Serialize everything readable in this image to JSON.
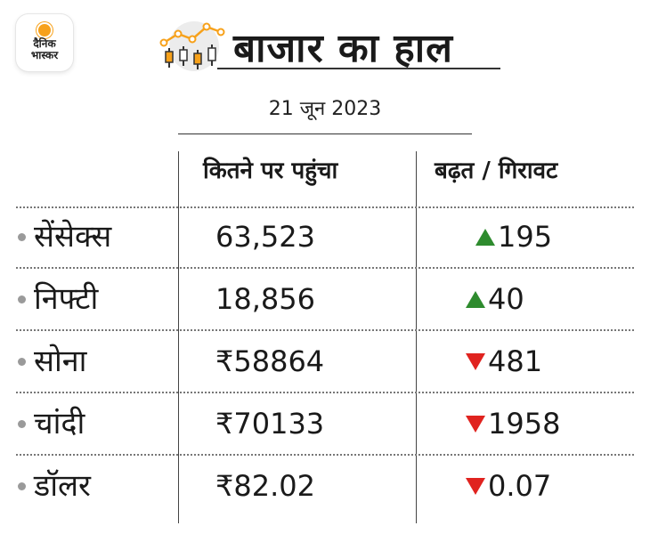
{
  "brand": {
    "line1": "दैनिक",
    "line2": "भास्कर"
  },
  "header": {
    "title": "बाजार का हाल",
    "date": "21 जून 2023"
  },
  "table": {
    "columns": [
      "कितने पर पहुंचा",
      "बढ़त / गिरावट"
    ],
    "rows": [
      {
        "name": "सेंसेक्स",
        "value": "63,523",
        "change": "195",
        "direction": "up"
      },
      {
        "name": "निफ्टी",
        "value": "18,856",
        "change": "40",
        "direction": "up"
      },
      {
        "name": "सोना",
        "value": "₹58864",
        "change": "481",
        "direction": "down"
      },
      {
        "name": "चांदी",
        "value": "₹70133",
        "change": "1958",
        "direction": "down"
      },
      {
        "name": "डॉलर",
        "value": "₹82.02",
        "change": "0.07",
        "direction": "down"
      }
    ]
  },
  "colors": {
    "up": "#2e8b2e",
    "down": "#e0231f",
    "accent": "#f7a11a"
  }
}
